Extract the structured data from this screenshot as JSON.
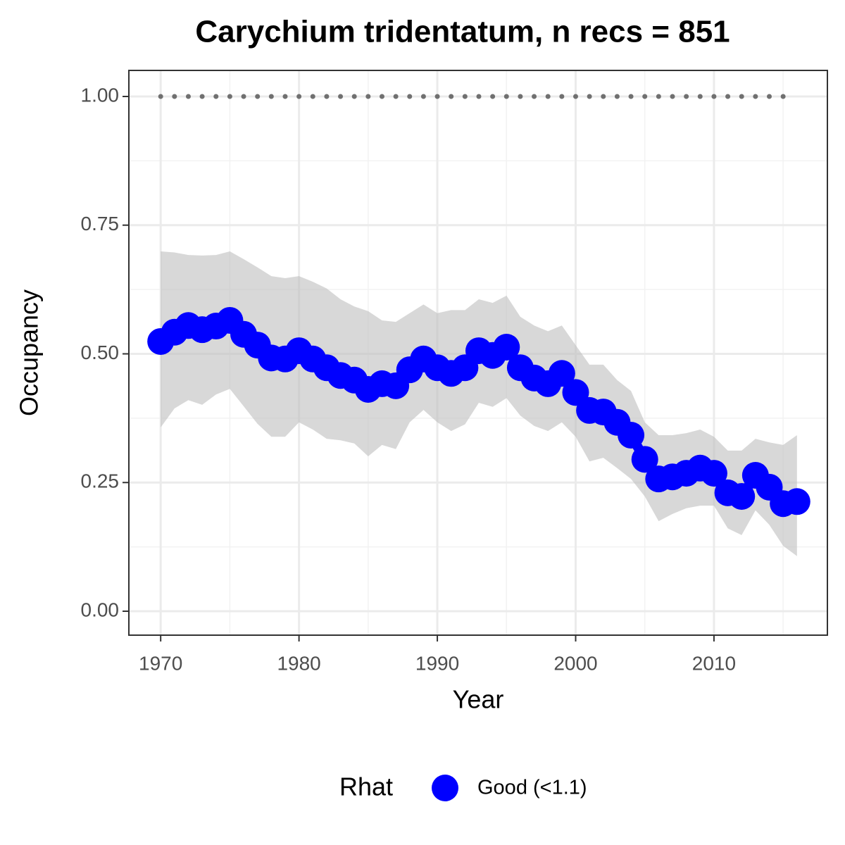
{
  "chart_data": {
    "type": "line",
    "title": "Carychium tridentatum, n recs = 851",
    "x_label": "Year",
    "y_label": "Occupancy",
    "x": [
      1970,
      1971,
      1972,
      1973,
      1974,
      1975,
      1976,
      1977,
      1978,
      1979,
      1980,
      1981,
      1982,
      1983,
      1984,
      1985,
      1986,
      1987,
      1988,
      1989,
      1990,
      1991,
      1992,
      1993,
      1994,
      1995,
      1996,
      1997,
      1998,
      1999,
      2000,
      2001,
      2002,
      2003,
      2004,
      2005,
      2006,
      2007,
      2008,
      2009,
      2010,
      2011,
      2012,
      2013,
      2014,
      2015,
      2016
    ],
    "series": [
      {
        "name": "Good (<1.1)",
        "color": "#0000ff",
        "values": [
          0.524,
          0.542,
          0.555,
          0.547,
          0.554,
          0.565,
          0.538,
          0.517,
          0.492,
          0.49,
          0.506,
          0.49,
          0.473,
          0.458,
          0.449,
          0.431,
          0.442,
          0.438,
          0.469,
          0.49,
          0.473,
          0.462,
          0.473,
          0.506,
          0.497,
          0.513,
          0.473,
          0.453,
          0.442,
          0.462,
          0.425,
          0.39,
          0.387,
          0.367,
          0.342,
          0.295,
          0.257,
          0.261,
          0.268,
          0.278,
          0.268,
          0.23,
          0.223,
          0.264,
          0.241,
          0.209,
          0.213
        ],
        "upper": [
          0.699,
          0.697,
          0.692,
          0.691,
          0.692,
          0.699,
          0.684,
          0.668,
          0.651,
          0.647,
          0.651,
          0.64,
          0.627,
          0.606,
          0.592,
          0.583,
          0.565,
          0.562,
          0.579,
          0.596,
          0.579,
          0.585,
          0.585,
          0.606,
          0.599,
          0.613,
          0.572,
          0.555,
          0.544,
          0.555,
          0.517,
          0.479,
          0.479,
          0.449,
          0.428,
          0.367,
          0.342,
          0.342,
          0.346,
          0.353,
          0.339,
          0.312,
          0.312,
          0.335,
          0.328,
          0.323,
          0.342
        ],
        "lower": [
          0.357,
          0.394,
          0.41,
          0.401,
          0.421,
          0.432,
          0.398,
          0.364,
          0.339,
          0.339,
          0.367,
          0.353,
          0.335,
          0.332,
          0.326,
          0.301,
          0.323,
          0.315,
          0.367,
          0.391,
          0.367,
          0.35,
          0.363,
          0.405,
          0.397,
          0.414,
          0.38,
          0.36,
          0.35,
          0.367,
          0.339,
          0.291,
          0.298,
          0.278,
          0.257,
          0.223,
          0.175,
          0.189,
          0.2,
          0.205,
          0.205,
          0.161,
          0.148,
          0.196,
          0.168,
          0.127,
          0.107
        ]
      }
    ],
    "band_color": "#bebebe",
    "reference_line": {
      "x": [
        1970,
        1971,
        1972,
        1973,
        1974,
        1975,
        1976,
        1977,
        1978,
        1979,
        1980,
        1981,
        1982,
        1983,
        1984,
        1985,
        1986,
        1987,
        1988,
        1989,
        1990,
        1991,
        1992,
        1993,
        1994,
        1995,
        1996,
        1997,
        1998,
        1999,
        2000,
        2001,
        2002,
        2003,
        2004,
        2005,
        2006,
        2007,
        2008,
        2009,
        2010,
        2011,
        2012,
        2013,
        2014,
        2015
      ],
      "values": [
        1,
        1,
        1,
        1,
        1,
        1,
        1,
        1,
        1,
        1,
        1,
        1,
        1,
        1,
        1,
        1,
        1,
        1,
        1,
        1,
        1,
        1,
        1,
        1,
        1,
        1,
        1,
        1,
        1,
        1,
        1,
        1,
        1,
        1,
        1,
        1,
        1,
        1,
        1,
        1,
        1,
        1,
        1,
        1,
        1,
        1
      ],
      "color": "#707070"
    },
    "legend_title": "Rhat",
    "legend_position": "bottom",
    "xlim": [
      1967.7,
      2018.2
    ],
    "xticks": [
      1970,
      1980,
      1990,
      2000,
      2010
    ],
    "ylim": [
      -0.0465,
      1.0506
    ],
    "yticks": [
      {
        "value": 0,
        "label": "0.00"
      },
      {
        "value": 0.25,
        "label": "0.25"
      },
      {
        "value": 0.5,
        "label": "0.50"
      },
      {
        "value": 0.75,
        "label": "0.75"
      },
      {
        "value": 1,
        "label": "1.00"
      }
    ],
    "grid": true
  }
}
